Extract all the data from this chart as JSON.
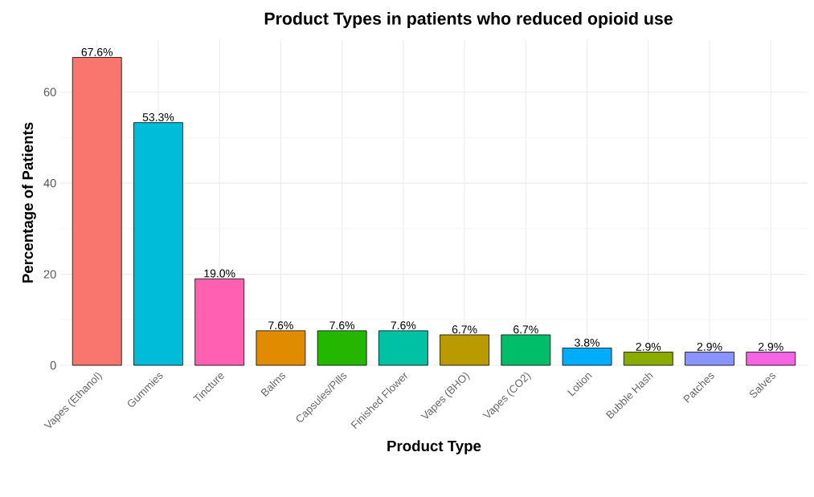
{
  "chart_data": {
    "type": "bar",
    "title": "Product Types in patients who reduced opioid use",
    "xlabel": "Product Type",
    "ylabel": "Percentage of Patients",
    "categories": [
      "Vapes (Ethanol)",
      "Gummies",
      "Tincture",
      "Balms",
      "Capsules/Pills",
      "Finished Flower",
      "Vapes (BHO)",
      "Vapes (CO2)",
      "Lotion",
      "Bubble Hash",
      "Patches",
      "Salves"
    ],
    "values": [
      67.6,
      53.3,
      19.0,
      7.6,
      7.6,
      7.6,
      6.7,
      6.7,
      3.8,
      2.9,
      2.9,
      2.9
    ],
    "value_labels": [
      "67.6%",
      "53.3%",
      "19.0%",
      "7.6%",
      "7.6%",
      "7.6%",
      "6.7%",
      "6.7%",
      "3.8%",
      "2.9%",
      "2.9%",
      "2.9%"
    ],
    "colors": [
      "#F8766D",
      "#00BCD8",
      "#FF61B0",
      "#E08B00",
      "#24B700",
      "#00C1A3",
      "#B99B00",
      "#00BE67",
      "#00ACFC",
      "#8CAB00",
      "#8B93FF",
      "#F564E3"
    ],
    "ylim": [
      0,
      71.4
    ],
    "yticks": [
      0,
      20,
      40,
      60
    ],
    "grid": true
  }
}
